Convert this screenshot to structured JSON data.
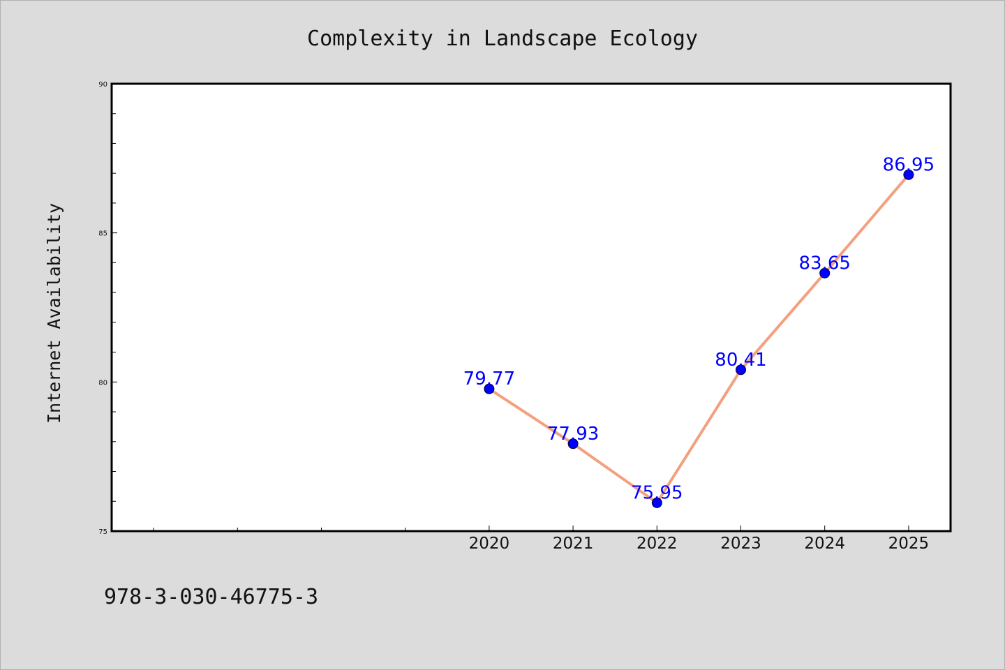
{
  "chart_data": {
    "type": "line",
    "title": "Complexity in Landscape Ecology",
    "xlabel": "",
    "ylabel": "Internet Availability",
    "x": [
      2020,
      2021,
      2022,
      2023,
      2024,
      2025
    ],
    "x_tick_labels": [
      "2020",
      "2021",
      "2022",
      "2023",
      "2024",
      "2025"
    ],
    "xlim": [
      2015.5,
      2025.5
    ],
    "ylim": [
      75,
      90
    ],
    "y_ticks": [
      75,
      80,
      85,
      90
    ],
    "series": [
      {
        "values": [
          79.77,
          77.93,
          75.95,
          80.41,
          83.65,
          86.95
        ]
      }
    ],
    "data_labels": [
      "79.77",
      "77.93",
      "75.95",
      "80.41",
      "83.65",
      "86.95"
    ],
    "grid": false,
    "colors": {
      "line": "#f4a07e",
      "marker": "#0000ff",
      "data_label": "#0000ff",
      "axes_bg": "#ffffff",
      "figure_bg": "#dcdcdc"
    }
  },
  "footnote": "978-3-030-46775-3"
}
